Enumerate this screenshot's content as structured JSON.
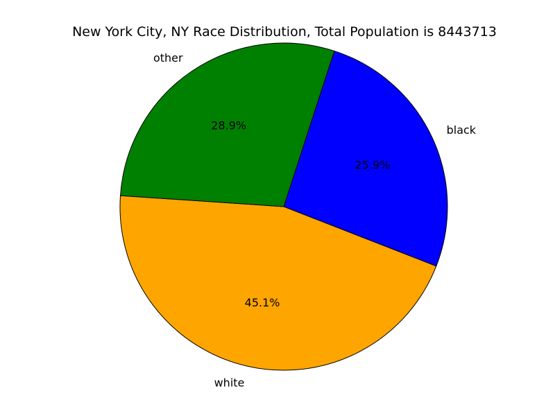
{
  "chart_data": {
    "type": "pie",
    "title": "New York City, NY Race Distribution, Total Population is 8443713",
    "categories": [
      "black",
      "white",
      "other"
    ],
    "values": [
      25.9,
      45.1,
      28.9
    ],
    "percent_labels": [
      "25.9%",
      "45.1%",
      "28.9%"
    ],
    "colors": [
      "#0000ff",
      "#ffa500",
      "#008000"
    ],
    "start_angle_deg": 72,
    "direction": "clockwise",
    "edge_color": "#000000"
  }
}
